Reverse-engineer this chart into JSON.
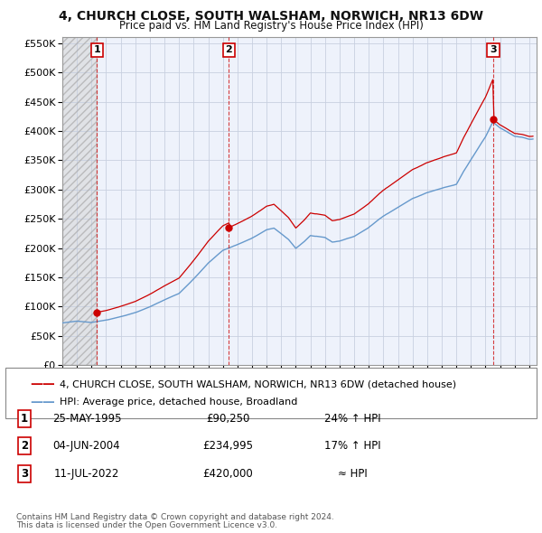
{
  "title1": "4, CHURCH CLOSE, SOUTH WALSHAM, NORWICH, NR13 6DW",
  "title2": "Price paid vs. HM Land Registry's House Price Index (HPI)",
  "red_line_label": "4, CHURCH CLOSE, SOUTH WALSHAM, NORWICH, NR13 6DW (detached house)",
  "blue_line_label": "HPI: Average price, detached house, Broadland",
  "transactions": [
    {
      "num": "1",
      "date": "25-MAY-1995",
      "price": "£90,250",
      "hpi": "24% ↑ HPI",
      "year": 1995.38
    },
    {
      "num": "2",
      "date": "04-JUN-2004",
      "price": "£234,995",
      "hpi": "17% ↑ HPI",
      "year": 2004.42
    },
    {
      "num": "3",
      "date": "11-JUL-2022",
      "price": "£420,000",
      "hpi": "≈ HPI",
      "year": 2022.53
    }
  ],
  "sale_prices": [
    90250,
    234995,
    420000
  ],
  "footer1": "Contains HM Land Registry data © Crown copyright and database right 2024.",
  "footer2": "This data is licensed under the Open Government Licence v3.0.",
  "ylim_max": 560000,
  "xlim_start": 1993.0,
  "xlim_end": 2025.5,
  "background_color": "#ffffff",
  "chart_bg_color": "#eef2fb",
  "grid_color": "#c8d0e0",
  "hatch_color": "#c8c8c8",
  "red_color": "#cc0000",
  "blue_color": "#6699cc",
  "sale_dot_color": "#cc0000",
  "title1_fontsize": 10,
  "title2_fontsize": 8.5,
  "tick_fontsize": 8,
  "legend_fontsize": 8,
  "table_fontsize": 8.5,
  "footer_fontsize": 6.5
}
